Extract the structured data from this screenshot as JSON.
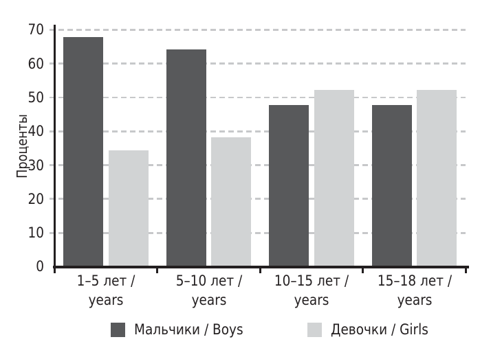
{
  "chart_data": {
    "type": "bar",
    "title": "",
    "ylabel": "Проценты",
    "xlabel": "",
    "ylim": [
      0,
      70
    ],
    "yticks": [
      0,
      10,
      20,
      30,
      40,
      50,
      60,
      70
    ],
    "grid": "horizontal-dashed",
    "legend_position": "bottom",
    "categories": [
      {
        "line1": "1–5 лет /",
        "line2": "years"
      },
      {
        "line1": "5–10 лет /",
        "line2": "years"
      },
      {
        "line1": "10–15 лет /",
        "line2": "years"
      },
      {
        "line1": "15–18 лет /",
        "line2": "years"
      }
    ],
    "series": [
      {
        "key": "boys",
        "name": "Мальчики / Boys",
        "color": "#58595b",
        "values": [
          67.5,
          64,
          47.5,
          47.5
        ]
      },
      {
        "key": "girls",
        "name": "Девочки / Girls",
        "color": "#d1d3d4",
        "values": [
          34,
          38,
          52,
          52
        ]
      }
    ],
    "colors": {
      "grid": "#c7c8ca",
      "axis": "#231f20",
      "text": "#231f20"
    }
  }
}
